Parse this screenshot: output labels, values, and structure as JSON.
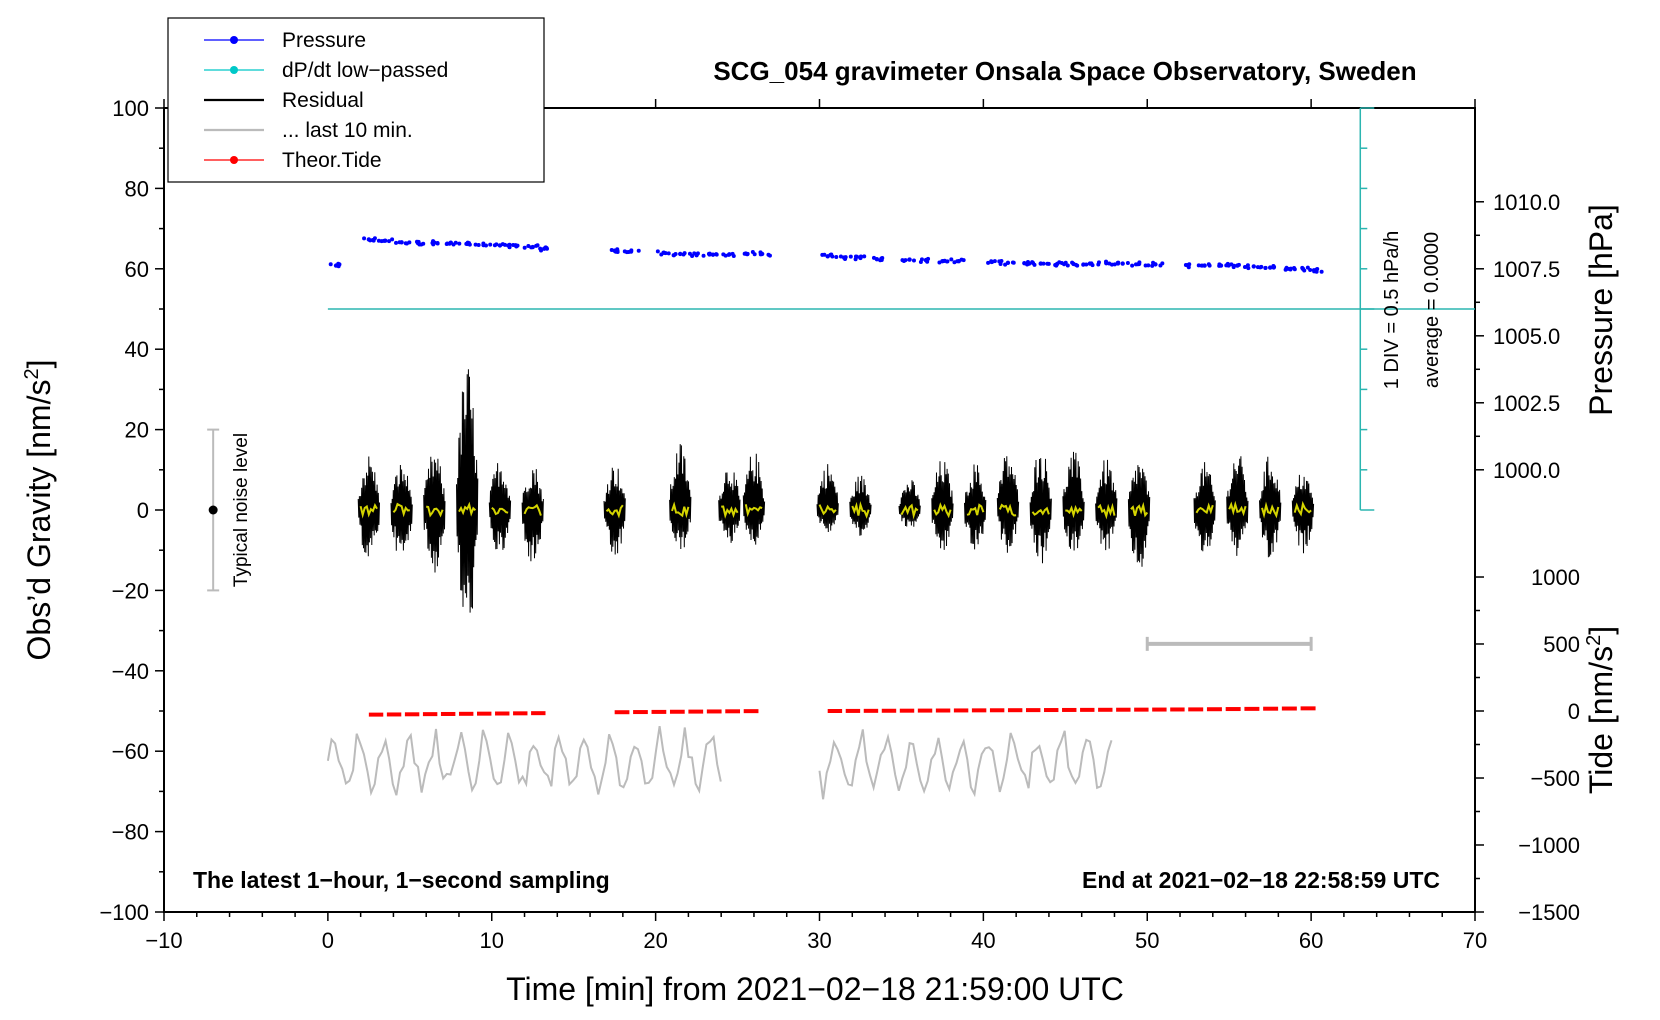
{
  "chart_data": {
    "type": "line",
    "title": "SCG_054 gravimeter Onsala Space Observatory, Sweden",
    "xlabel": "Time [min] from 2021−02−18 21:59:00 UTC",
    "ylabel_left_main": "Obs’d Gravity [nm/s",
    "ylabel_left_sup": "2",
    "ylabel_left_end": "]",
    "ylabel_right_pressure": "Pressure [hPa]",
    "ylabel_right_tide_main": "Tide [nm/s",
    "ylabel_right_tide_sup": "2",
    "ylabel_right_tide_end": "]",
    "xlim": [
      -10,
      70
    ],
    "ylim": [
      -100,
      100
    ],
    "x_ticks": [
      -10,
      0,
      10,
      20,
      30,
      40,
      50,
      60,
      70
    ],
    "x_tick_labels": [
      "−10",
      "0",
      "10",
      "20",
      "30",
      "40",
      "50",
      "60",
      "70"
    ],
    "y_ticks": [
      -100,
      -80,
      -60,
      -40,
      -20,
      0,
      20,
      40,
      60,
      80,
      100
    ],
    "y_tick_labels": [
      "−100",
      "−80",
      "−60",
      "−40",
      "−20",
      "0",
      "20",
      "40",
      "60",
      "80",
      "100"
    ],
    "pressure_axis": {
      "ticks": [
        1000.0,
        1002.5,
        1005.0,
        1007.5,
        1010.0
      ],
      "tick_labels": [
        "1000.0",
        "1002.5",
        "1005.0",
        "1007.5",
        "1010.0"
      ],
      "gravity_equivalent": [
        10,
        26.67,
        43.33,
        60,
        76.67
      ]
    },
    "tide_axis": {
      "ticks": [
        -1500,
        -1000,
        -500,
        0,
        500,
        1000
      ],
      "tick_labels": [
        "−1500",
        "−1000",
        "−500",
        "0",
        "500",
        "1000"
      ],
      "gravity_equivalent": [
        -100,
        -83.33,
        -66.67,
        -50,
        -33.33,
        -16.67
      ]
    },
    "legend": {
      "position": "top-left",
      "entries": [
        {
          "label": "Pressure",
          "color": "#0000ff",
          "marker": true
        },
        {
          "label": "dP/dt low−passed",
          "color": "#00c8c8",
          "marker": true
        },
        {
          "label": "Residual",
          "color": "#000000",
          "marker": false
        },
        {
          "label": "... last 10 min.",
          "color": "#bbbbbb",
          "marker": false
        },
        {
          "label": "Theor.Tide",
          "color": "#ff0000",
          "marker": true
        }
      ]
    },
    "dpdt_scale": {
      "label1": "1 DIV = 0.5 hPa/h",
      "label2": "average = 0.0000",
      "baseline_y": 50,
      "x": 63,
      "y_range": [
        0,
        100
      ]
    },
    "noise_marker": {
      "label": "Typical noise level",
      "x": -7,
      "center": 0,
      "low": -20,
      "high": 20
    },
    "last10_bar": {
      "x_start": 50,
      "x_end": 60,
      "y": -33.3
    },
    "footnote_left": "The latest 1−hour, 1−second sampling",
    "footnote_right": "End at 2021−02−18 22:58:59 UTC",
    "series": [
      {
        "name": "Pressure",
        "color": "#0000ff",
        "points": [
          [
            0.5,
            60.8
          ],
          [
            2.5,
            67.3
          ],
          [
            3.5,
            67.0
          ],
          [
            4.5,
            66.6
          ],
          [
            5.5,
            66.4
          ],
          [
            6.5,
            66.5
          ],
          [
            7.5,
            66.5
          ],
          [
            8.5,
            66.2
          ],
          [
            9.5,
            65.9
          ],
          [
            10.5,
            65.8
          ],
          [
            11.5,
            65.6
          ],
          [
            12.5,
            65.4
          ],
          [
            13.2,
            65.0
          ],
          [
            17.5,
            64.5
          ],
          [
            18.5,
            64.3
          ],
          [
            20.5,
            64.0
          ],
          [
            21.5,
            63.7
          ],
          [
            22.5,
            63.4
          ],
          [
            23.5,
            63.5
          ],
          [
            24.5,
            63.6
          ],
          [
            25.5,
            63.8
          ],
          [
            26.5,
            63.7
          ],
          [
            30.5,
            63.1
          ],
          [
            31.5,
            62.8
          ],
          [
            32.5,
            62.7
          ],
          [
            33.5,
            62.4
          ],
          [
            35.5,
            62.3
          ],
          [
            36.5,
            62.1
          ],
          [
            37.5,
            61.9
          ],
          [
            38.5,
            61.9
          ],
          [
            40.5,
            61.7
          ],
          [
            41.5,
            61.5
          ],
          [
            42.5,
            61.4
          ],
          [
            43.5,
            61.3
          ],
          [
            44.5,
            61.2
          ],
          [
            45.5,
            61.2
          ],
          [
            46.5,
            61.3
          ],
          [
            47.5,
            61.4
          ],
          [
            48.5,
            61.3
          ],
          [
            49.5,
            61.2
          ],
          [
            50.5,
            61.1
          ],
          [
            52.5,
            60.8
          ],
          [
            53.5,
            60.8
          ],
          [
            54.5,
            60.8
          ],
          [
            55.5,
            60.8
          ],
          [
            56.5,
            60.6
          ],
          [
            57.5,
            60.3
          ],
          [
            58.5,
            60.2
          ],
          [
            59.5,
            60.0
          ],
          [
            60.3,
            59.7
          ]
        ]
      },
      {
        "name": "Residual",
        "color": "#000000",
        "bursts": [
          [
            2.5,
            14,
            -13
          ],
          [
            4.5,
            12,
            -13
          ],
          [
            6.5,
            15,
            -16
          ],
          [
            8.5,
            37,
            -32
          ],
          [
            10.5,
            13,
            -12
          ],
          [
            12.5,
            12,
            -14
          ],
          [
            17.5,
            12,
            -13
          ],
          [
            21.5,
            17,
            -11
          ],
          [
            24.5,
            12,
            -9
          ],
          [
            26.0,
            15,
            -9
          ],
          [
            30.5,
            12,
            -6
          ],
          [
            32.5,
            9,
            -7
          ],
          [
            35.5,
            8,
            -5
          ],
          [
            37.5,
            13,
            -11
          ],
          [
            39.5,
            12,
            -11
          ],
          [
            41.5,
            15,
            -11
          ],
          [
            43.5,
            16,
            -14
          ],
          [
            45.5,
            15,
            -11
          ],
          [
            47.5,
            13,
            -11
          ],
          [
            49.5,
            13,
            -16
          ],
          [
            53.5,
            12,
            -12
          ],
          [
            55.5,
            15,
            -12
          ],
          [
            57.5,
            14,
            -13
          ],
          [
            59.5,
            10,
            -11
          ]
        ]
      },
      {
        "name": "Theor.Tide",
        "color": "#ff0000",
        "segments": [
          [
            2.5,
            13.5,
            -50.9,
            -50.5
          ],
          [
            17.5,
            26.5,
            -50.3,
            -50.0
          ],
          [
            30.5,
            52.5,
            -50.0,
            -49.6
          ],
          [
            52.5,
            60.5,
            -49.6,
            -49.3
          ]
        ]
      },
      {
        "name": "... last 10 min.",
        "color": "#bbbbbb",
        "segments": [
          [
            0,
            24
          ],
          [
            30,
            48
          ]
        ],
        "level": -63,
        "amplitude": 8
      }
    ]
  }
}
